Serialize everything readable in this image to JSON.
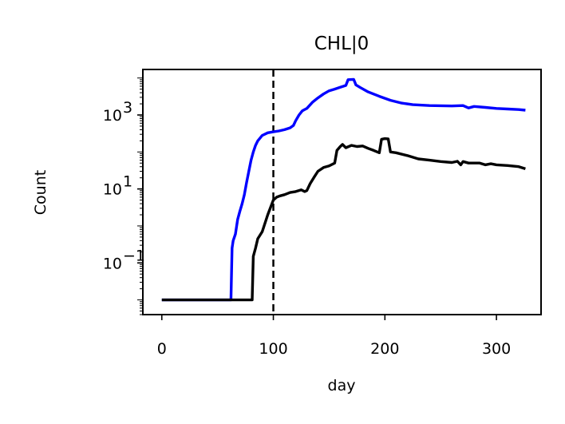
{
  "chart_data": {
    "type": "line",
    "title": "CHL|0",
    "xlabel": "day",
    "ylabel": "Count",
    "xlim": [
      -17,
      340
    ],
    "ylim": [
      0.004,
      17000
    ],
    "yscale": "log",
    "grid": false,
    "xticks": [
      {
        "value": 0,
        "label": "0"
      },
      {
        "value": 100,
        "label": "100"
      },
      {
        "value": 200,
        "label": "200"
      },
      {
        "value": 300,
        "label": "300"
      }
    ],
    "yticks": [
      {
        "value": 0.1,
        "base": "10",
        "exp": "−1"
      },
      {
        "value": 10,
        "base": "10",
        "exp": "1"
      },
      {
        "value": 1000,
        "base": "10",
        "exp": "3"
      }
    ],
    "vline": {
      "x": 100,
      "color": "#000000",
      "style": "dashed"
    },
    "series": [
      {
        "color": "#0000ff",
        "points": [
          [
            0,
            0.01
          ],
          [
            62,
            0.01
          ],
          [
            63,
            0.25
          ],
          [
            64,
            0.4
          ],
          [
            66,
            0.6
          ],
          [
            68,
            1.5
          ],
          [
            70,
            2.5
          ],
          [
            72,
            4
          ],
          [
            74,
            7
          ],
          [
            76,
            15
          ],
          [
            78,
            30
          ],
          [
            80,
            60
          ],
          [
            82,
            100
          ],
          [
            84,
            150
          ],
          [
            86,
            200
          ],
          [
            90,
            280
          ],
          [
            95,
            330
          ],
          [
            100,
            350
          ],
          [
            105,
            370
          ],
          [
            110,
            400
          ],
          [
            115,
            450
          ],
          [
            118,
            520
          ],
          [
            120,
            700
          ],
          [
            123,
            1000
          ],
          [
            126,
            1300
          ],
          [
            130,
            1500
          ],
          [
            135,
            2200
          ],
          [
            140,
            2900
          ],
          [
            145,
            3700
          ],
          [
            150,
            4500
          ],
          [
            155,
            5000
          ],
          [
            160,
            5600
          ],
          [
            165,
            6300
          ],
          [
            167,
            9000
          ],
          [
            172,
            9200
          ],
          [
            174,
            6500
          ],
          [
            178,
            5500
          ],
          [
            185,
            4200
          ],
          [
            195,
            3200
          ],
          [
            205,
            2500
          ],
          [
            215,
            2100
          ],
          [
            225,
            1900
          ],
          [
            240,
            1800
          ],
          [
            260,
            1750
          ],
          [
            270,
            1800
          ],
          [
            275,
            1550
          ],
          [
            280,
            1700
          ],
          [
            290,
            1600
          ],
          [
            300,
            1500
          ],
          [
            310,
            1450
          ],
          [
            320,
            1400
          ],
          [
            326,
            1350
          ]
        ]
      },
      {
        "color": "#000000",
        "points": [
          [
            0,
            0.01
          ],
          [
            81,
            0.01
          ],
          [
            82,
            0.15
          ],
          [
            84,
            0.25
          ],
          [
            86,
            0.45
          ],
          [
            90,
            0.7
          ],
          [
            95,
            2
          ],
          [
            100,
            5
          ],
          [
            103,
            6
          ],
          [
            106,
            6.5
          ],
          [
            110,
            7
          ],
          [
            115,
            8
          ],
          [
            120,
            8.5
          ],
          [
            125,
            9.5
          ],
          [
            128,
            8.5
          ],
          [
            130,
            9
          ],
          [
            133,
            14
          ],
          [
            137,
            22
          ],
          [
            140,
            30
          ],
          [
            145,
            38
          ],
          [
            150,
            42
          ],
          [
            155,
            50
          ],
          [
            157,
            110
          ],
          [
            160,
            140
          ],
          [
            162,
            160
          ],
          [
            165,
            130
          ],
          [
            170,
            150
          ],
          [
            175,
            140
          ],
          [
            180,
            145
          ],
          [
            185,
            125
          ],
          [
            190,
            110
          ],
          [
            195,
            95
          ],
          [
            197,
            220
          ],
          [
            200,
            230
          ],
          [
            203,
            225
          ],
          [
            205,
            100
          ],
          [
            210,
            95
          ],
          [
            220,
            80
          ],
          [
            230,
            65
          ],
          [
            240,
            60
          ],
          [
            250,
            55
          ],
          [
            260,
            52
          ],
          [
            265,
            56
          ],
          [
            268,
            45
          ],
          [
            270,
            55
          ],
          [
            275,
            50
          ],
          [
            285,
            50
          ],
          [
            290,
            45
          ],
          [
            295,
            48
          ],
          [
            300,
            45
          ],
          [
            310,
            43
          ],
          [
            320,
            40
          ],
          [
            326,
            35
          ]
        ]
      }
    ]
  }
}
